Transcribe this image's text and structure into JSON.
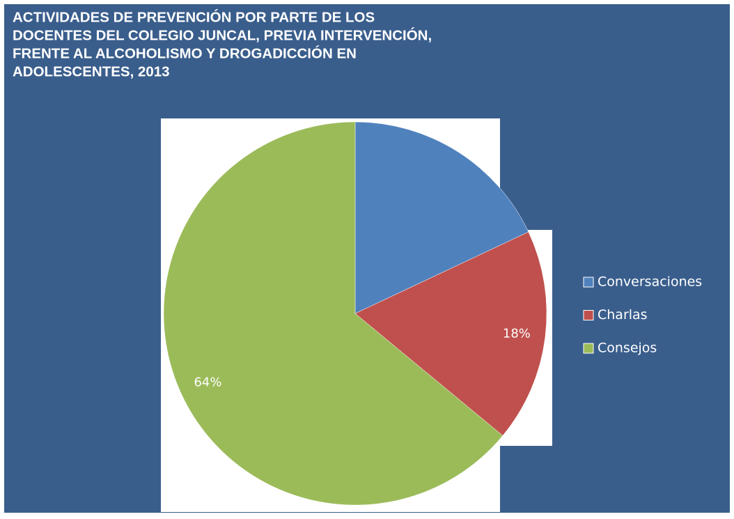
{
  "chart_data": {
    "type": "pie",
    "title": [
      "ACTIVIDADES DE PREVENCIÓN POR PARTE DE LOS",
      "DOCENTES DEL COLEGIO JUNCAL, PREVIA INTERVENCIÓN,",
      "FRENTE  AL ALCOHOLISMO Y DROGADICCIÓN EN",
      "ADOLESCENTES, 2013"
    ],
    "categories": [
      "Conversaciones",
      "Charlas",
      "Consejos"
    ],
    "values": [
      18,
      18,
      64
    ],
    "value_labels": [
      null,
      "18%",
      "64%"
    ],
    "colors": [
      "#4f81bd",
      "#c0504d",
      "#9bbb59"
    ],
    "legend": "right"
  }
}
